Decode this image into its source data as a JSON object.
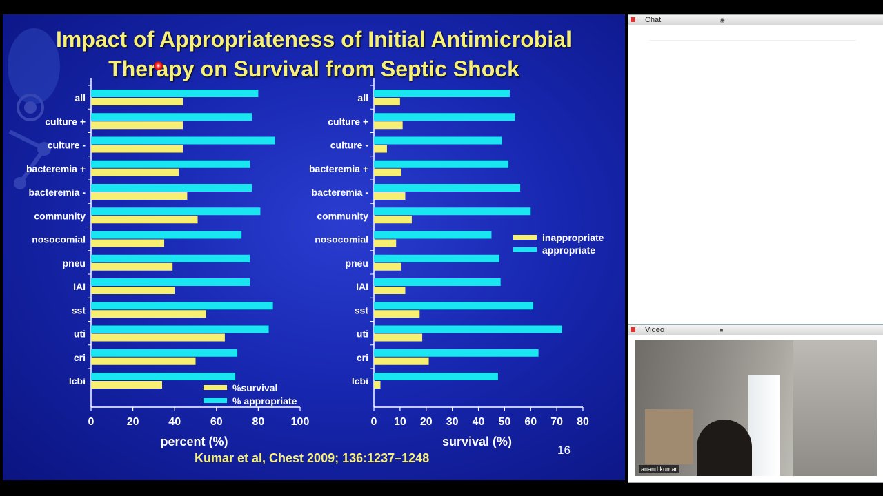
{
  "slide": {
    "title_line1": "Impact of Appropriateness of Initial Antimicrobial",
    "title_line2": "Therapy on Survival from Septic Shock",
    "citation": "Kumar et al, Chest 2009; 136:1237–1248",
    "page_number": "16"
  },
  "chat_panel": {
    "title": "Chat"
  },
  "video_panel": {
    "title": "Video",
    "participant_name": "anand kumar"
  },
  "colors": {
    "appropriate": "#19e6f0",
    "inappropriate": "#f7ef72",
    "slide_text": "#ffffff",
    "title": "#f6f07a"
  },
  "chart_data": [
    {
      "type": "bar",
      "orientation": "horizontal",
      "categories": [
        "all",
        "culture +",
        "culture -",
        "bacteremia +",
        "bacteremia -",
        "community",
        "nosocomial",
        "pneu",
        "IAI",
        "sst",
        "uti",
        "cri",
        "lcbi"
      ],
      "series": [
        {
          "name": "% appropriate",
          "values": [
            80,
            77,
            88,
            76,
            77,
            81,
            72,
            76,
            76,
            87,
            85,
            70,
            69
          ]
        },
        {
          "name": "%survival",
          "values": [
            44,
            44,
            44,
            42,
            46,
            51,
            35,
            39,
            40,
            55,
            64,
            50,
            34
          ]
        }
      ],
      "xlabel": "percent (%)",
      "xlim": [
        0,
        100
      ],
      "xticks": [
        0,
        20,
        40,
        60,
        80,
        100
      ],
      "legend": "bottom-right"
    },
    {
      "type": "bar",
      "orientation": "horizontal",
      "categories": [
        "all",
        "culture +",
        "culture -",
        "bacteremia +",
        "bacteremia -",
        "community",
        "nosocomial",
        "pneu",
        "IAI",
        "sst",
        "uti",
        "cri",
        "lcbi"
      ],
      "series": [
        {
          "name": "appropriate",
          "values": [
            52,
            54,
            49,
            51.5,
            56,
            60,
            45,
            48,
            48.5,
            61,
            72,
            63,
            47.5
          ]
        },
        {
          "name": "inappropriate",
          "values": [
            10,
            11,
            5,
            10.5,
            12,
            14.5,
            8.5,
            10.5,
            12,
            17.5,
            18.5,
            21,
            2.5
          ]
        }
      ],
      "xlabel": "survival (%)",
      "xlim": [
        0,
        80
      ],
      "xticks": [
        0,
        10,
        20,
        30,
        40,
        50,
        60,
        70,
        80
      ],
      "legend": "right"
    }
  ]
}
